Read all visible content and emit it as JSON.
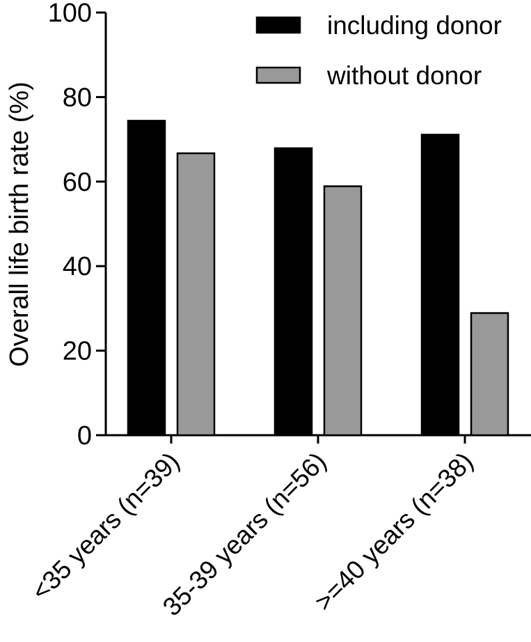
{
  "chart_data": {
    "type": "bar",
    "categories": [
      "<35 years (n=39)",
      "35-39 years (n=56)",
      ">=40 years (n=38)"
    ],
    "series": [
      {
        "name": "including donor",
        "values": [
          74.4,
          67.9,
          71.1
        ],
        "color": "#000000"
      },
      {
        "name": "without donor",
        "values": [
          66.7,
          58.9,
          28.9
        ],
        "color": "#999999"
      }
    ],
    "title": "",
    "xlabel": "",
    "ylabel": "Overall life birth rate (%)",
    "ylim": [
      0,
      100
    ],
    "yticks": [
      "0",
      "20",
      "40",
      "60",
      "80",
      "100"
    ],
    "grid": false,
    "legend_position": "top-right"
  }
}
